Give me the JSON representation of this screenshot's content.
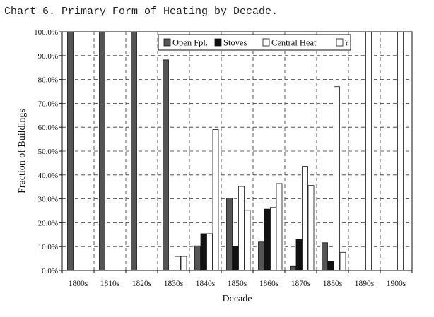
{
  "chart_data": {
    "type": "bar",
    "title": "Chart 6. Primary Form of Heating by Decade.",
    "xlabel": "Decade",
    "ylabel": "Fraction of Buildings",
    "ylim": [
      0,
      100
    ],
    "yticks": [
      "0.0%",
      "10.0%",
      "20.0%",
      "30.0%",
      "40.0%",
      "50.0%",
      "60.0%",
      "70.0%",
      "80.0%",
      "90.0%",
      "100.0%"
    ],
    "categories": [
      "1800s",
      "1810s",
      "1820s",
      "1830s",
      "1840s",
      "1850s",
      "1860s",
      "1870s",
      "1880s",
      "1890s",
      "1900s"
    ],
    "series": [
      {
        "name": "Open Fpl.",
        "color": "#555555",
        "values": [
          100,
          100,
          100,
          88.2,
          10.3,
          30.3,
          11.9,
          1.7,
          11.6,
          0,
          0
        ]
      },
      {
        "name": "Stoves",
        "color": "#111111",
        "values": [
          0,
          0,
          0,
          0,
          15.4,
          10.1,
          25.7,
          13.0,
          3.8,
          0,
          0
        ]
      },
      {
        "name": "Central Heat",
        "color": "#ffffff",
        "values": [
          0,
          0,
          0,
          5.9,
          15.4,
          35.2,
          26.4,
          43.6,
          77.0,
          100,
          100
        ]
      },
      {
        "name": "?",
        "color": "#ffffff",
        "values": [
          0,
          0,
          0,
          5.9,
          59.0,
          25.2,
          36.4,
          35.6,
          7.6,
          0,
          0
        ]
      }
    ],
    "grid": true,
    "legend_position": "top-right"
  }
}
